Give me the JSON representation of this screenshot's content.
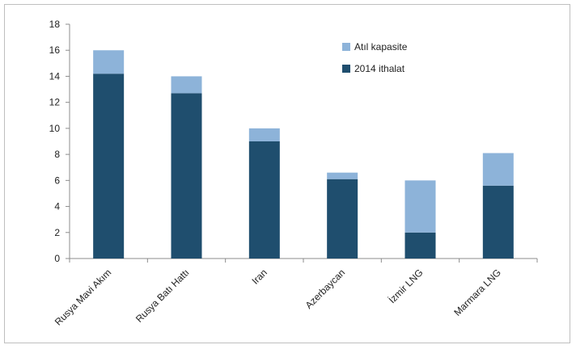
{
  "chart_data": {
    "type": "bar",
    "stacked": true,
    "categories": [
      "Rusya Mavi Akım",
      "Rusya Batı Hattı",
      "Iran",
      "Azerbaycan",
      "İzmir LNG",
      "Marmara LNG"
    ],
    "series": [
      {
        "name": "2014 ithalat",
        "values": [
          14.2,
          12.7,
          9.0,
          6.1,
          2.0,
          5.6
        ],
        "color": "#1f4e6e"
      },
      {
        "name": "Atıl kapasite",
        "values": [
          1.8,
          1.3,
          1.0,
          0.5,
          4.0,
          2.5
        ],
        "color": "#8db3d9"
      }
    ],
    "title": "",
    "xlabel": "",
    "ylabel": "",
    "ylim": [
      0,
      18
    ],
    "yticks": [
      "0",
      "2",
      "4",
      "6",
      "8",
      "10",
      "12",
      "14",
      "16",
      "18"
    ],
    "grid": false,
    "legend": {
      "placement": "top-right",
      "entries": [
        "Atıl kapasite",
        "2014 ithalat"
      ]
    }
  }
}
